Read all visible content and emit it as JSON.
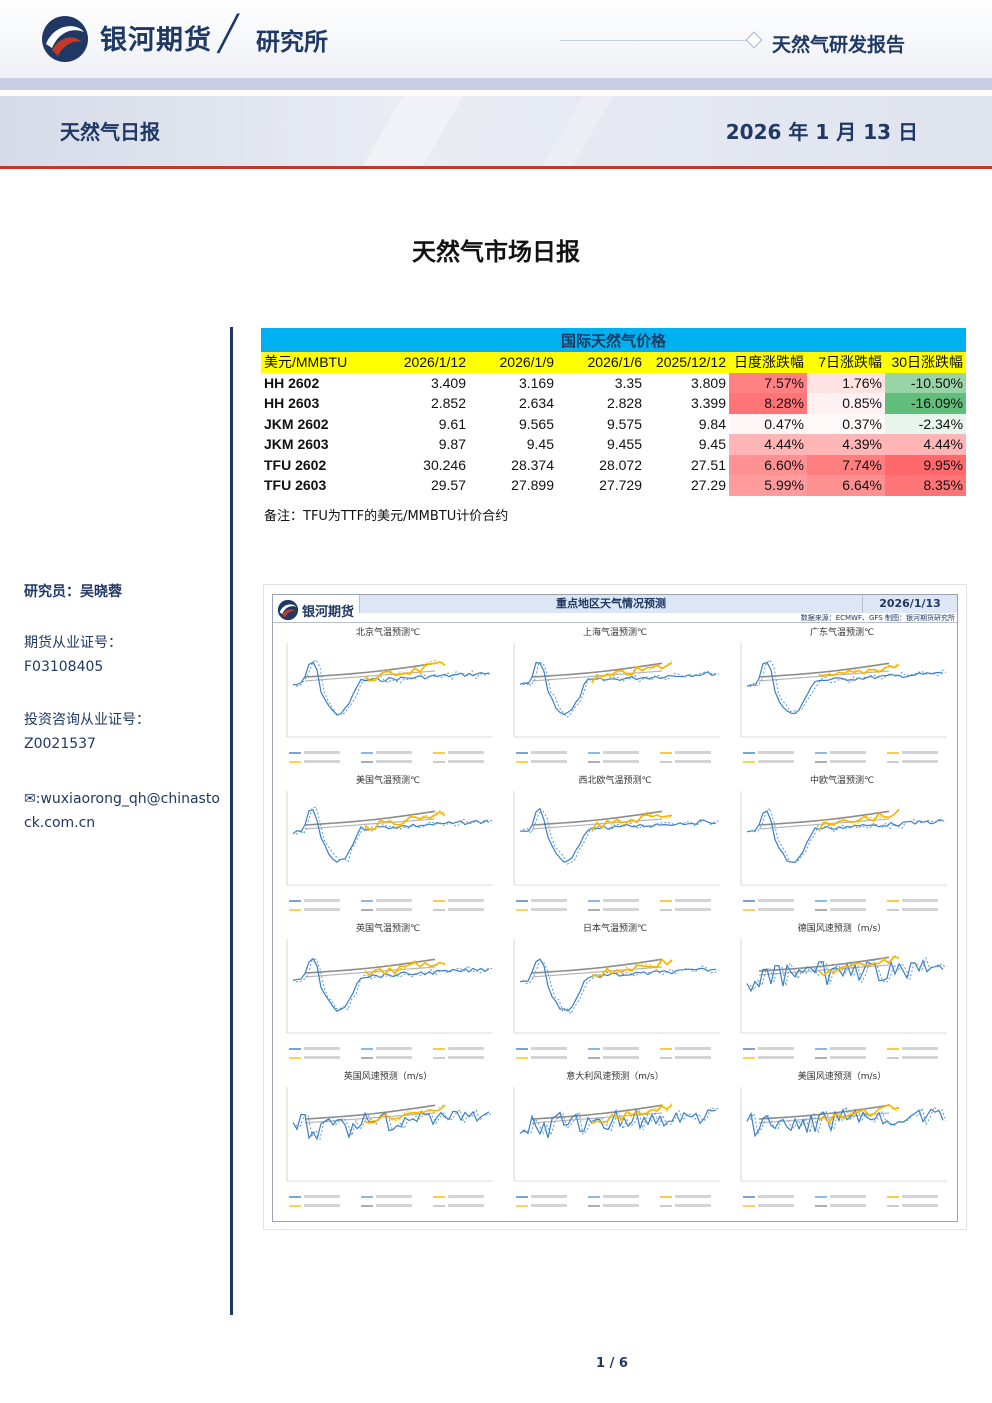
{
  "header": {
    "brand": "银河期货",
    "separator": "╱",
    "department": "研究所",
    "report_type": "天然气研发报告",
    "daily_title": "天然气日报",
    "date": "2026 年 1 月 13 日"
  },
  "main_title": "天然气市场日报",
  "author": {
    "researcher": "研究员：吴晓蓉",
    "futures_cert_label": "期货从业证号：",
    "futures_cert": "F03108405",
    "advisory_cert_label": "投资咨询从业证号：",
    "advisory_cert": "Z0021537",
    "email_icon": "email-icon",
    "email": ":wuxiaorong_qh@chinastock.com.cn"
  },
  "price_table": {
    "title": "国际天然气价格",
    "columns": [
      "美元/MMBTU",
      "2026/1/12",
      "2026/1/9",
      "2026/1/6",
      "2025/12/12",
      "日度涨跌幅",
      "7日涨跌幅",
      "30日涨跌幅"
    ],
    "rows": [
      {
        "name": "HH 2602",
        "v1": "3.409",
        "v2": "3.169",
        "v3": "3.35",
        "v4": "3.809",
        "d1": "7.57%",
        "d7": "1.76%",
        "d30": "-10.50%"
      },
      {
        "name": "HH 2603",
        "v1": "2.852",
        "v2": "2.634",
        "v3": "2.828",
        "v4": "3.399",
        "d1": "8.28%",
        "d7": "0.85%",
        "d30": "-16.09%"
      },
      {
        "name": "JKM 2602",
        "v1": "9.61",
        "v2": "9.565",
        "v3": "9.575",
        "v4": "9.84",
        "d1": "0.47%",
        "d7": "0.37%",
        "d30": "-2.34%"
      },
      {
        "name": "JKM 2603",
        "v1": "9.87",
        "v2": "9.45",
        "v3": "9.455",
        "v4": "9.45",
        "d1": "4.44%",
        "d7": "4.39%",
        "d30": "4.44%"
      },
      {
        "name": "TFU 2602",
        "v1": "30.246",
        "v2": "28.374",
        "v3": "28.072",
        "v4": "27.51",
        "d1": "6.60%",
        "d7": "7.74%",
        "d30": "9.95%"
      },
      {
        "name": "TFU 2603",
        "v1": "29.57",
        "v2": "27.899",
        "v3": "27.729",
        "v4": "27.29",
        "d1": "5.99%",
        "d7": "6.64%",
        "d30": "8.35%"
      }
    ],
    "note": "备注：TFU为TTF的美元/MMBTU计价合约"
  },
  "weather": {
    "brand": "银河期货",
    "title": "重点地区天气情况预测",
    "date": "2026/1/13",
    "source": "数据来源：ECMWF、GFS  制图：银河期货研究所",
    "panels": [
      "北京气温预测℃",
      "上海气温预测℃",
      "广东气温预测℃",
      "美国气温预测℃",
      "西北欧气温预测℃",
      "中欧气温预测℃",
      "英国气温预测℃",
      "日本气温预测℃",
      "德国风速预测（m/s）",
      "英国风速预测（m/s）",
      "意大利风速预测（m/s）",
      "美国风速预测（m/s）"
    ]
  },
  "page": "1 / 6",
  "colors": {
    "navy": "#1f3864",
    "red": "#c0392b",
    "table_title": "#00b0f0",
    "table_header": "#ffff00"
  }
}
